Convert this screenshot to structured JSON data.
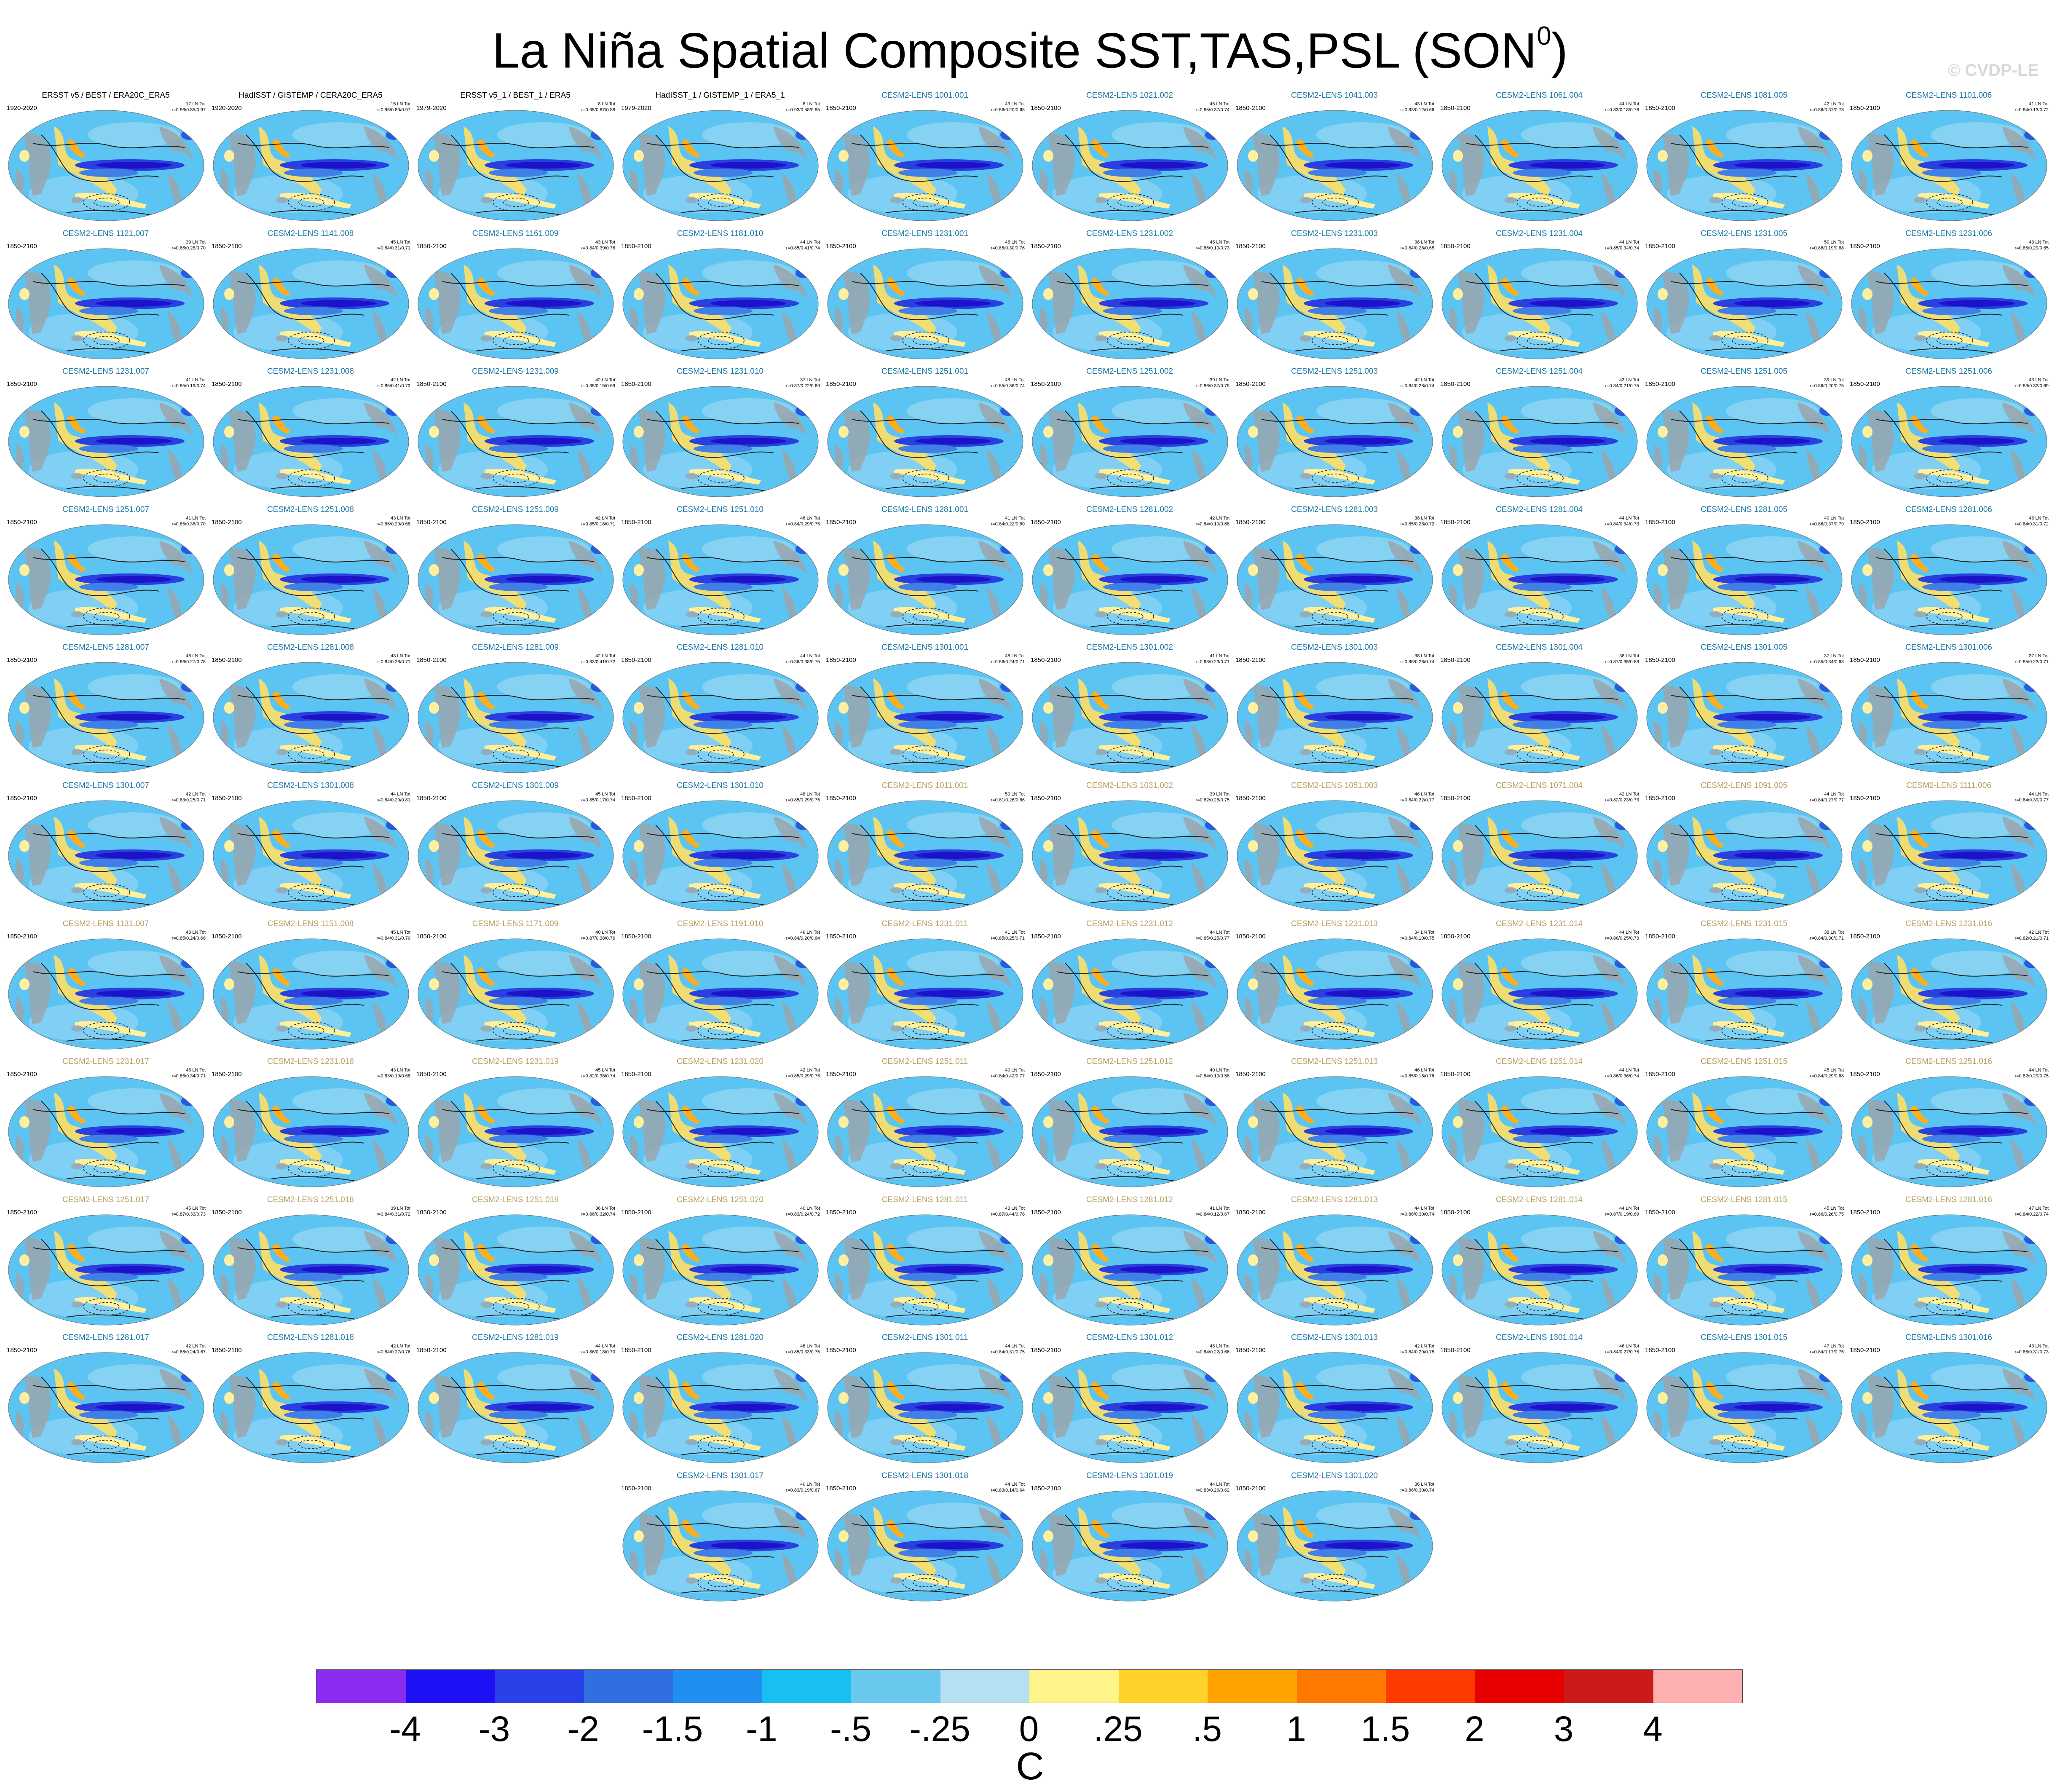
{
  "title": "La Niña Spatial Composite SST,TAS,PSL (SON",
  "title_superscript": "0",
  "title_suffix": ")",
  "copyright": "© CVDP-LE",
  "colors": {
    "model_title": "#1f77a8",
    "model_title_alt": "#b8a060",
    "ocean_base": "#5cc4f2",
    "land": "#9aa0a6"
  },
  "panels": [
    {
      "title": "ERSST v5 / BEST / ERA20C_ERA5",
      "years": "1920-2020",
      "events": "17 LN Tot",
      "stats": "r=0.96/0.85/0.97",
      "obs": true
    },
    {
      "title": "HadISST / GISTEMP / CERA20C_ERA5",
      "years": "1920-2020",
      "events": "15 LN Tot",
      "stats": "r=0.96/0.83/0.97",
      "obs": true
    },
    {
      "title": "ERSST v5_1 / BEST_1 / ERA5",
      "years": "1979-2020",
      "events": "8 LN Tot",
      "stats": "r=0.95/0.67/0.88",
      "obs": true
    },
    {
      "title": "HadISST_1 / GISTEMP_1 / ERA5_1",
      "years": "1979-2020",
      "events": "8 LN Tot",
      "stats": "r=0.93/0.58/0.85",
      "obs": true
    },
    {
      "title": "CESM2-LENS 1001.001",
      "years": "1850-2100",
      "events": "43 LN Tot",
      "stats": "r=0.86/0.20/0.68"
    },
    {
      "title": "CESM2-LENS 1021.002",
      "years": "1850-2100",
      "events": "45 LN Tot",
      "stats": "r=0.85/0.37/0.74"
    },
    {
      "title": "CESM2-LENS 1041.003",
      "years": "1850-2100",
      "events": "43 LN Tot",
      "stats": "r=0.83/0.12/0.66"
    },
    {
      "title": "CESM2-LENS 1061.004",
      "years": "1850-2100",
      "events": "44 LN Tot",
      "stats": "r=0.83/0.18/0.76"
    },
    {
      "title": "CESM2-LENS 1081.005",
      "years": "1850-2100",
      "events": "42 LN Tot",
      "stats": "r=0.86/0.37/0.73"
    },
    {
      "title": "CESM2-LENS 1101.006",
      "years": "1850-2100",
      "events": "41 LN Tot",
      "stats": "r=0.84/0.13/0.72"
    },
    {
      "title": "CESM2-LENS 1121.007",
      "years": "1850-2100",
      "events": "39 LN Tot",
      "stats": "r=0.86/0.28/0.70"
    },
    {
      "title": "CESM2-LENS 1141.008",
      "years": "1850-2100",
      "events": "45 LN Tot",
      "stats": "r=0.84/0.31/0.71"
    },
    {
      "title": "CESM2-LENS 1161.009",
      "years": "1850-2100",
      "events": "43 LN Tot",
      "stats": "r=0.84/0.39/0.76"
    },
    {
      "title": "CESM2-LENS 1181.010",
      "years": "1850-2100",
      "events": "44 LN Tot",
      "stats": "r=0.85/0.41/0.74"
    },
    {
      "title": "CESM2-LENS 1231.001",
      "years": "1850-2100",
      "events": "48 LN Tot",
      "stats": "r=0.85/0.30/0.76"
    },
    {
      "title": "CESM2-LENS 1231.002",
      "years": "1850-2100",
      "events": "45 LN Tot",
      "stats": "r=0.86/0.19/0.73"
    },
    {
      "title": "CESM2-LENS 1231.003",
      "years": "1850-2100",
      "events": "38 LN Tot",
      "stats": "r=0.84/0.28/0.65"
    },
    {
      "title": "CESM2-LENS 1231.004",
      "years": "1850-2100",
      "events": "44 LN Tot",
      "stats": "r=0.85/0.34/0.74"
    },
    {
      "title": "CESM2-LENS 1231.005",
      "years": "1850-2100",
      "events": "50 LN Tot",
      "stats": "r=0.86/0.19/0.68"
    },
    {
      "title": "CESM2-LENS 1231.006",
      "years": "1850-2100",
      "events": "43 LN Tot",
      "stats": "r=0.85/0.29/0.65"
    },
    {
      "title": "CESM2-LENS 1231.007",
      "years": "1850-2100",
      "events": "41 LN Tot",
      "stats": "r=0.85/0.19/0.74"
    },
    {
      "title": "CESM2-LENS 1231.008",
      "years": "1850-2100",
      "events": "42 LN Tot",
      "stats": "r=0.85/0.41/0.73"
    },
    {
      "title": "CESM2-LENS 1231.009",
      "years": "1850-2100",
      "events": "42 LN Tot",
      "stats": "r=0.85/0.15/0.69"
    },
    {
      "title": "CESM2-LENS 1231.010",
      "years": "1850-2100",
      "events": "37 LN Tot",
      "stats": "r=0.87/0.22/0.69"
    },
    {
      "title": "CESM2-LENS 1251.001",
      "years": "1850-2100",
      "events": "48 LN Tot",
      "stats": "r=0.85/0.36/0.74"
    },
    {
      "title": "CESM2-LENS 1251.002",
      "years": "1850-2100",
      "events": "39 LN Tot",
      "stats": "r=0.86/0.37/0.75"
    },
    {
      "title": "CESM2-LENS 1251.003",
      "years": "1850-2100",
      "events": "42 LN Tot",
      "stats": "r=0.84/0.28/0.74"
    },
    {
      "title": "CESM2-LENS 1251.004",
      "years": "1850-2100",
      "events": "43 LN Tot",
      "stats": "r=0.84/0.21/0.75"
    },
    {
      "title": "CESM2-LENS 1251.005",
      "years": "1850-2100",
      "events": "39 LN Tot",
      "stats": "r=0.86/0.20/0.75"
    },
    {
      "title": "CESM2-LENS 1251.006",
      "years": "1850-2100",
      "events": "43 LN Tot",
      "stats": "r=0.83/0.32/0.69"
    },
    {
      "title": "CESM2-LENS 1251.007",
      "years": "1850-2100",
      "events": "41 LN Tot",
      "stats": "r=0.85/0.36/0.70"
    },
    {
      "title": "CESM2-LENS 1251.008",
      "years": "1850-2100",
      "events": "43 LN Tot",
      "stats": "r=0.86/0.20/0.68"
    },
    {
      "title": "CESM2-LENS 1251.009",
      "years": "1850-2100",
      "events": "42 LN Tot",
      "stats": "r=0.85/0.18/0.71"
    },
    {
      "title": "CESM2-LENS 1251.010",
      "years": "1850-2100",
      "events": "46 LN Tot",
      "stats": "r=0.84/0.29/0.75"
    },
    {
      "title": "CESM2-LENS 1281.001",
      "years": "1850-2100",
      "events": "41 LN Tot",
      "stats": "r=0.84/0.22/0.80"
    },
    {
      "title": "CESM2-LENS 1281.002",
      "years": "1850-2100",
      "events": "42 LN Tot",
      "stats": "r=0.84/0.19/0.68"
    },
    {
      "title": "CESM2-LENS 1281.003",
      "years": "1850-2100",
      "events": "38 LN Tot",
      "stats": "r=0.85/0.26/0.72"
    },
    {
      "title": "CESM2-LENS 1281.004",
      "years": "1850-2100",
      "events": "44 LN Tot",
      "stats": "r=0.84/0.34/0.73"
    },
    {
      "title": "CESM2-LENS 1281.005",
      "years": "1850-2100",
      "events": "40 LN Tot",
      "stats": "r=0.86/0.37/0.79"
    },
    {
      "title": "CESM2-LENS 1281.006",
      "years": "1850-2100",
      "events": "46 LN Tot",
      "stats": "r=0.84/0.31/0.72"
    },
    {
      "title": "CESM2-LENS 1281.007",
      "years": "1850-2100",
      "events": "48 LN Tot",
      "stats": "r=0.86/0.27/0.78"
    },
    {
      "title": "CESM2-LENS 1281.008",
      "years": "1850-2100",
      "events": "43 LN Tot",
      "stats": "r=0.84/0.28/0.71"
    },
    {
      "title": "CESM2-LENS 1281.009",
      "years": "1850-2100",
      "events": "42 LN Tot",
      "stats": "r=0.83/0.41/0.72"
    },
    {
      "title": "CESM2-LENS 1281.010",
      "years": "1850-2100",
      "events": "44 LN Tot",
      "stats": "r=0.86/0.38/0.75"
    },
    {
      "title": "CESM2-LENS 1301.001",
      "years": "1850-2100",
      "events": "48 LN Tot",
      "stats": "r=0.86/0.24/0.71"
    },
    {
      "title": "CESM2-LENS 1301.002",
      "years": "1850-2100",
      "events": "41 LN Tot",
      "stats": "r=0.83/0.23/0.71"
    },
    {
      "title": "CESM2-LENS 1301.003",
      "years": "1850-2100",
      "events": "38 LN Tot",
      "stats": "r=0.86/0.26/0.74"
    },
    {
      "title": "CESM2-LENS 1301.004",
      "years": "1850-2100",
      "events": "38 LN Tot",
      "stats": "r=0.87/0.35/0.68"
    },
    {
      "title": "CESM2-LENS 1301.005",
      "years": "1850-2100",
      "events": "37 LN Tot",
      "stats": "r=0.85/0.34/0.68"
    },
    {
      "title": "CESM2-LENS 1301.006",
      "years": "1850-2100",
      "events": "37 LN Tot",
      "stats": "r=0.85/0.23/0.71"
    },
    {
      "title": "CESM2-LENS 1301.007",
      "years": "1850-2100",
      "events": "42 LN Tot",
      "stats": "r=0.83/0.25/0.71"
    },
    {
      "title": "CESM2-LENS 1301.008",
      "years": "1850-2100",
      "events": "44 LN Tot",
      "stats": "r=0.84/0.20/0.81"
    },
    {
      "title": "CESM2-LENS 1301.009",
      "years": "1850-2100",
      "events": "45 LN Tot",
      "stats": "r=0.85/0.17/0.74"
    },
    {
      "title": "CESM2-LENS 1301.010",
      "years": "1850-2100",
      "events": "48 LN Tot",
      "stats": "r=0.85/0.29/0.75"
    },
    {
      "title": "CESM2-LENS 1011.001",
      "years": "1850-2100",
      "events": "50 LN Tot",
      "stats": "r=0.81/0.26/0.66",
      "alt": true
    },
    {
      "title": "CESM2-LENS 1031.002",
      "years": "1850-2100",
      "events": "39 LN Tot",
      "stats": "r=0.82/0.26/0.75",
      "alt": true
    },
    {
      "title": "CESM2-LENS 1051.003",
      "years": "1850-2100",
      "events": "46 LN Tot",
      "stats": "r=0.84/0.32/0.77",
      "alt": true
    },
    {
      "title": "CESM2-LENS 1071.004",
      "years": "1850-2100",
      "events": "42 LN Tot",
      "stats": "r=0.82/0.23/0.73",
      "alt": true
    },
    {
      "title": "CESM2-LENS 1091.005",
      "years": "1850-2100",
      "events": "44 LN Tot",
      "stats": "r=0.84/0.27/0.77",
      "alt": true
    },
    {
      "title": "CESM2-LENS 1111.006",
      "years": "1850-2100",
      "events": "44 LN Tot",
      "stats": "r=0.84/0.39/0.77",
      "alt": true
    },
    {
      "title": "CESM2-LENS 1131.007",
      "years": "1850-2100",
      "events": "43 LN Tot",
      "stats": "r=0.85/0.24/0.66",
      "alt": true
    },
    {
      "title": "CESM2-LENS 1151.008",
      "years": "1850-2100",
      "events": "45 LN Tot",
      "stats": "r=0.84/0.31/0.70",
      "alt": true
    },
    {
      "title": "CESM2-LENS 1171.009",
      "years": "1850-2100",
      "events": "40 LN Tot",
      "stats": "r=0.87/0.38/0.76",
      "alt": true
    },
    {
      "title": "CESM2-LENS 1191.010",
      "years": "1850-2100",
      "events": "46 LN Tot",
      "stats": "r=0.84/0.20/0.64",
      "alt": true
    },
    {
      "title": "CESM2-LENS 1231.011",
      "years": "1850-2100",
      "events": "41 LN Tot",
      "stats": "r=0.85/0.25/0.71",
      "alt": true
    },
    {
      "title": "CESM2-LENS 1231.012",
      "years": "1850-2100",
      "events": "44 LN Tot",
      "stats": "r=0.85/0.25/0.77",
      "alt": true
    },
    {
      "title": "CESM2-LENS 1231.013",
      "years": "1850-2100",
      "events": "34 LN Tot",
      "stats": "r=0.84/0.10/0.75",
      "alt": true
    },
    {
      "title": "CESM2-LENS 1231.014",
      "years": "1850-2100",
      "events": "44 LN Tot",
      "stats": "r=0.86/0.25/0.73",
      "alt": true
    },
    {
      "title": "CESM2-LENS 1231.015",
      "years": "1850-2100",
      "events": "38 LN Tot",
      "stats": "r=0.84/0.30/0.71",
      "alt": true
    },
    {
      "title": "CESM2-LENS 1231.016",
      "years": "1850-2100",
      "events": "42 LN Tot",
      "stats": "r=0.82/0.21/0.71",
      "alt": true
    },
    {
      "title": "CESM2-LENS 1231.017",
      "years": "1850-2100",
      "events": "45 LN Tot",
      "stats": "r=0.86/0.34/0.71",
      "alt": true
    },
    {
      "title": "CESM2-LENS 1231.018",
      "years": "1850-2100",
      "events": "43 LN Tot",
      "stats": "r=0.83/0.19/0.68",
      "alt": true
    },
    {
      "title": "CESM2-LENS 1231.019",
      "years": "1850-2100",
      "events": "45 LN Tot",
      "stats": "r=0.82/0.38/0.74",
      "alt": true
    },
    {
      "title": "CESM2-LENS 1231.020",
      "years": "1850-2100",
      "events": "42 LN Tot",
      "stats": "r=0.85/0.29/0.76",
      "alt": true
    },
    {
      "title": "CESM2-LENS 1251.011",
      "years": "1850-2100",
      "events": "40 LN Tot",
      "stats": "r=0.84/0.42/0.77",
      "alt": true
    },
    {
      "title": "CESM2-LENS 1251.012",
      "years": "1850-2100",
      "events": "40 LN Tot",
      "stats": "r=0.84/0.19/0.58",
      "alt": true
    },
    {
      "title": "CESM2-LENS 1251.013",
      "years": "1850-2100",
      "events": "46 LN Tot",
      "stats": "r=0.85/0.18/0.76",
      "alt": true
    },
    {
      "title": "CESM2-LENS 1251.014",
      "years": "1850-2100",
      "events": "44 LN Tot",
      "stats": "r=0.86/0.36/0.74",
      "alt": true
    },
    {
      "title": "CESM2-LENS 1251.015",
      "years": "1850-2100",
      "events": "45 LN Tot",
      "stats": "r=0.84/0.29/0.68",
      "alt": true
    },
    {
      "title": "CESM2-LENS 1251.016",
      "years": "1850-2100",
      "events": "44 LN Tot",
      "stats": "r=0.82/0.29/0.75",
      "alt": true
    },
    {
      "title": "CESM2-LENS 1251.017",
      "years": "1850-2100",
      "events": "45 LN Tot",
      "stats": "r=0.87/0.33/0.73",
      "alt": true
    },
    {
      "title": "CESM2-LENS 1251.018",
      "years": "1850-2100",
      "events": "39 LN Tot",
      "stats": "r=0.84/0.31/0.72",
      "alt": true
    },
    {
      "title": "CESM2-LENS 1251.019",
      "years": "1850-2100",
      "events": "36 LN Tot",
      "stats": "r=0.86/0.32/0.74",
      "alt": true
    },
    {
      "title": "CESM2-LENS 1251.020",
      "years": "1850-2100",
      "events": "40 LN Tot",
      "stats": "r=0.83/0.24/0.72",
      "alt": true
    },
    {
      "title": "CESM2-LENS 1281.011",
      "years": "1850-2100",
      "events": "43 LN Tot",
      "stats": "r=0.87/0.44/0.78",
      "alt": true
    },
    {
      "title": "CESM2-LENS 1281.012",
      "years": "1850-2100",
      "events": "41 LN Tot",
      "stats": "r=0.84/0.12/0.67",
      "alt": true
    },
    {
      "title": "CESM2-LENS 1281.013",
      "years": "1850-2100",
      "events": "44 LN Tot",
      "stats": "r=0.86/0.30/0.74",
      "alt": true
    },
    {
      "title": "CESM2-LENS 1281.014",
      "years": "1850-2100",
      "events": "44 LN Tot",
      "stats": "r=0.87/0.19/0.69",
      "alt": true
    },
    {
      "title": "CESM2-LENS 1281.015",
      "years": "1850-2100",
      "events": "45 LN Tot",
      "stats": "r=0.86/0.26/0.75",
      "alt": true
    },
    {
      "title": "CESM2-LENS 1281.016",
      "years": "1850-2100",
      "events": "47 LN Tot",
      "stats": "r=0.84/0.22/0.74",
      "alt": true
    },
    {
      "title": "CESM2-LENS 1281.017",
      "years": "1850-2100",
      "events": "42 LN Tot",
      "stats": "r=0.86/0.24/0.67"
    },
    {
      "title": "CESM2-LENS 1281.018",
      "years": "1850-2100",
      "events": "42 LN Tot",
      "stats": "r=0.84/0.27/0.76"
    },
    {
      "title": "CESM2-LENS 1281.019",
      "years": "1850-2100",
      "events": "44 LN Tot",
      "stats": "r=0.86/0.18/0.70"
    },
    {
      "title": "CESM2-LENS 1281.020",
      "years": "1850-2100",
      "events": "46 LN Tot",
      "stats": "r=0.85/0.33/0.75"
    },
    {
      "title": "CESM2-LENS 1301.011",
      "years": "1850-2100",
      "events": "44 LN Tot",
      "stats": "r=0.84/0.31/0.75"
    },
    {
      "title": "CESM2-LENS 1301.012",
      "years": "1850-2100",
      "events": "46 LN Tot",
      "stats": "r=0.84/0.22/0.66"
    },
    {
      "title": "CESM2-LENS 1301.013",
      "years": "1850-2100",
      "events": "42 LN Tot",
      "stats": "r=0.84/0.29/0.75"
    },
    {
      "title": "CESM2-LENS 1301.014",
      "years": "1850-2100",
      "events": "46 LN Tot",
      "stats": "r=0.84/0.27/0.75"
    },
    {
      "title": "CESM2-LENS 1301.015",
      "years": "1850-2100",
      "events": "47 LN Tot",
      "stats": "r=0.84/0.17/0.75"
    },
    {
      "title": "CESM2-LENS 1301.016",
      "years": "1850-2100",
      "events": "43 LN Tot",
      "stats": "r=0.86/0.31/0.73"
    },
    {
      "title": "CESM2-LENS 1301.017",
      "years": "1850-2100",
      "events": "40 LN Tot",
      "stats": "r=0.83/0.19/0.67"
    },
    {
      "title": "CESM2-LENS 1301.018",
      "years": "1850-2100",
      "events": "44 LN Tot",
      "stats": "r=0.83/0.14/0.64"
    },
    {
      "title": "CESM2-LENS 1301.019",
      "years": "1850-2100",
      "events": "44 LN Tot",
      "stats": "r=0.83/0.26/0.62"
    },
    {
      "title": "CESM2-LENS 1301.020",
      "years": "1850-2100",
      "events": "36 LN Tot",
      "stats": "r=0.86/0.30/0.74"
    }
  ],
  "colorbar": {
    "colors": [
      "#8b2cf0",
      "#1e10f5",
      "#2a40e8",
      "#2f6fe0",
      "#1f90f0",
      "#18bff2",
      "#6ac8ef",
      "#b5dff2",
      "#fff48a",
      "#ffd12b",
      "#ffa300",
      "#ff7800",
      "#ff3a00",
      "#e80000",
      "#cc1a1a",
      "#ffb1b1"
    ],
    "labels": [
      "-4",
      "-3",
      "-2",
      "-1.5",
      "-1",
      "-.5",
      "-.25",
      "0",
      ".25",
      ".5",
      "1",
      "1.5",
      "2",
      "3",
      "4"
    ],
    "units": "C"
  }
}
